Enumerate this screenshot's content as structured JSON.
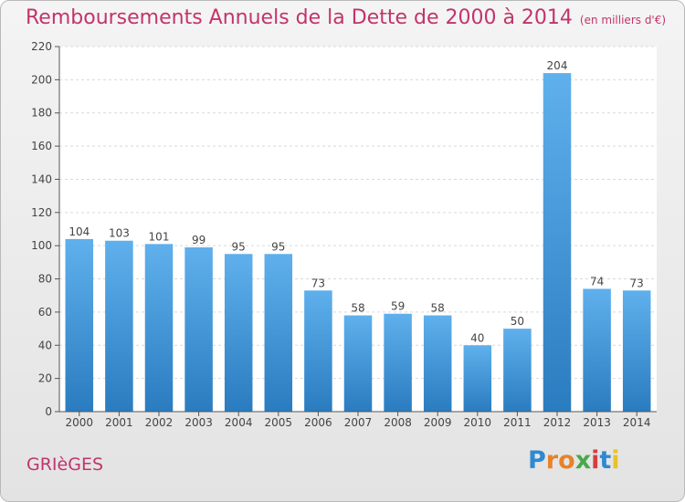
{
  "title": "Remboursements Annuels de la Dette de 2000 à 2014",
  "subtitle": "(en milliers d'€)",
  "city": "GRIèGES",
  "brand": "Proxiti",
  "colors": {
    "title": "#c2346b",
    "bar_light": "#5fb0ec",
    "bar_dark": "#2a7cc0"
  },
  "chart_data": {
    "type": "bar",
    "categories": [
      "2000",
      "2001",
      "2002",
      "2003",
      "2004",
      "2005",
      "2006",
      "2007",
      "2008",
      "2009",
      "2010",
      "2011",
      "2012",
      "2013",
      "2014"
    ],
    "values": [
      104,
      103,
      101,
      99,
      95,
      95,
      73,
      58,
      59,
      58,
      40,
      50,
      204,
      74,
      73
    ],
    "title": "Remboursements Annuels de la Dette de 2000 à 2014",
    "subtitle": "(en milliers d'€)",
    "ylim": [
      0,
      220
    ],
    "yticks": [
      0,
      20,
      40,
      60,
      80,
      100,
      120,
      140,
      160,
      180,
      200,
      220
    ],
    "grid": true
  }
}
